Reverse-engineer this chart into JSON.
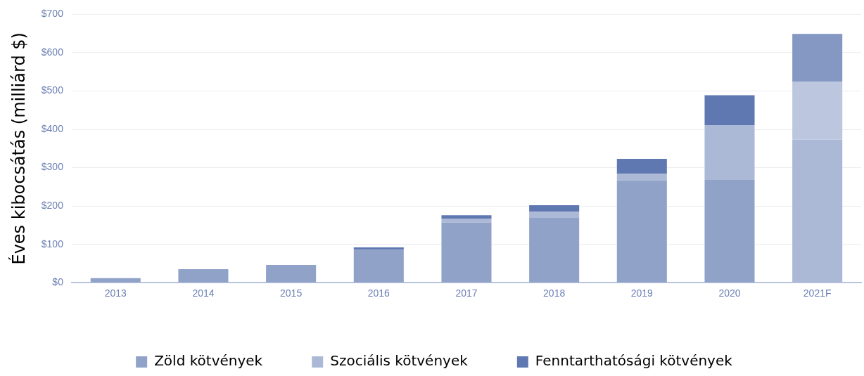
{
  "chart_data": {
    "type": "bar",
    "stacked": true,
    "ylabel": "Éves kibocsátás (milliárd $)",
    "categories": [
      "2013",
      "2014",
      "2015",
      "2016",
      "2017",
      "2018",
      "2019",
      "2020",
      "2021F"
    ],
    "series": [
      {
        "name": "Zöld kötvények",
        "color": "#91a2c9",
        "colors": [
          "#91a2c9",
          "#91a2c9",
          "#91a2c9",
          "#91a2c9",
          "#91a2c9",
          "#91a2c9",
          "#91a2c9",
          "#91a2c9",
          "#abb8d6"
        ],
        "values": [
          12,
          35,
          46,
          86,
          157,
          169,
          267,
          268,
          373
        ]
      },
      {
        "name": "Szociális kötvények",
        "color": "#acb9d6",
        "colors": [
          "#acb9d6",
          "#acb9d6",
          "#acb9d6",
          "#acb9d6",
          "#acb9d6",
          "#acb9d6",
          "#acb9d6",
          "#acb9d6",
          "#bcc6df"
        ],
        "values": [
          0,
          0,
          0,
          0,
          10,
          16,
          17,
          143,
          151
        ]
      },
      {
        "name": "Fenntarthatósági kötvények",
        "color": "#5f78b2",
        "colors": [
          "#5f78b2",
          "#5f78b2",
          "#5f78b2",
          "#5f78b2",
          "#5f78b2",
          "#5f78b2",
          "#5f78b2",
          "#5f78b2",
          "#8597c3"
        ],
        "values": [
          0,
          0,
          0,
          6,
          9,
          17,
          39,
          78,
          125
        ]
      }
    ],
    "ylim": [
      0,
      700
    ],
    "yticks": [
      {
        "value": 0,
        "label": "$0"
      },
      {
        "value": 100,
        "label": "$100"
      },
      {
        "value": 200,
        "label": "$200"
      },
      {
        "value": 300,
        "label": "$300"
      },
      {
        "value": 400,
        "label": "$400"
      },
      {
        "value": 500,
        "label": "$500"
      },
      {
        "value": 600,
        "label": "$600"
      },
      {
        "value": 700,
        "label": "$700"
      }
    ],
    "grid": "y",
    "legend": "bottom"
  }
}
